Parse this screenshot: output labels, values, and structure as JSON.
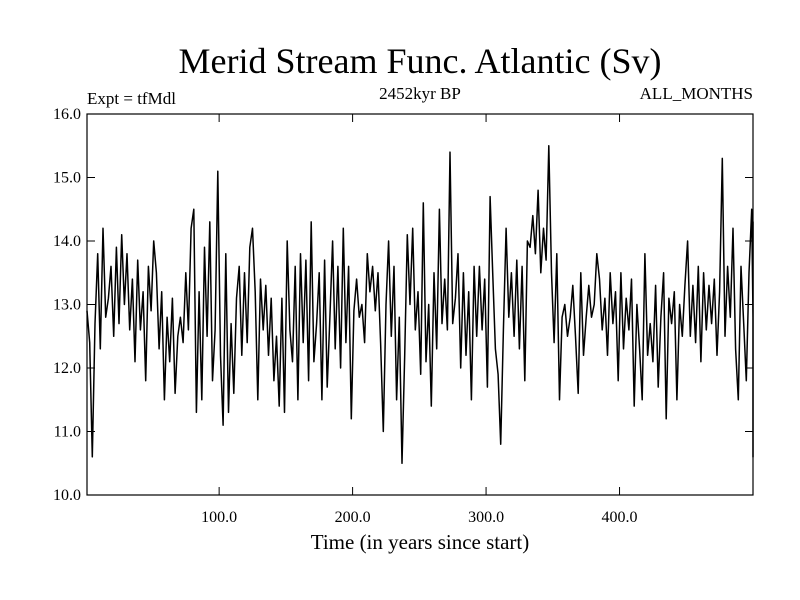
{
  "chart_data": {
    "type": "line",
    "title": "Merid Stream Func. Atlantic (Sv)",
    "subtitle_left": "Expt = tfMdl",
    "subtitle_center": "2452kyr BP",
    "subtitle_right": "ALL_MONTHS",
    "xlabel": "Time (in years since start)",
    "ylabel": "",
    "xlim": [
      1,
      500
    ],
    "ylim": [
      10.0,
      16.0
    ],
    "xticks": [
      100,
      200,
      300,
      400
    ],
    "xtick_labels": [
      "100.0",
      "200.0",
      "300.0",
      "400.0"
    ],
    "yticks": [
      10,
      11,
      12,
      13,
      14,
      15,
      16
    ],
    "ytick_labels": [
      "10.0",
      "11.0",
      "12.0",
      "13.0",
      "14.0",
      "15.0",
      "16.0"
    ],
    "grid": false,
    "series": [
      {
        "name": "AMOC",
        "x_start": 1,
        "x_step": 2,
        "values": [
          12.9,
          12.4,
          10.6,
          12.7,
          13.8,
          12.3,
          14.2,
          12.8,
          13.1,
          13.6,
          12.5,
          13.9,
          12.7,
          14.1,
          13.0,
          13.8,
          12.6,
          13.4,
          12.1,
          13.7,
          12.6,
          13.2,
          11.8,
          13.6,
          12.9,
          14.0,
          13.5,
          12.3,
          13.2,
          11.5,
          12.8,
          12.1,
          13.1,
          11.6,
          12.5,
          12.8,
          12.4,
          13.5,
          12.6,
          14.2,
          14.5,
          11.3,
          13.2,
          11.5,
          13.9,
          12.5,
          14.3,
          11.8,
          12.6,
          15.1,
          12.2,
          11.1,
          13.8,
          11.3,
          12.7,
          11.6,
          13.1,
          13.6,
          12.2,
          13.5,
          12.4,
          13.9,
          14.2,
          13.2,
          11.5,
          13.4,
          12.6,
          13.3,
          12.2,
          13.1,
          11.8,
          12.5,
          11.4,
          13.1,
          11.3,
          14.0,
          12.6,
          12.1,
          13.6,
          11.5,
          13.8,
          12.4,
          13.7,
          11.8,
          14.3,
          12.1,
          12.7,
          13.5,
          11.5,
          13.7,
          11.7,
          12.8,
          14.0,
          12.3,
          13.6,
          12.0,
          14.2,
          12.4,
          13.6,
          11.2,
          12.9,
          13.4,
          12.8,
          13.0,
          12.4,
          13.8,
          13.2,
          13.6,
          12.9,
          13.5,
          12.4,
          11.0,
          13.0,
          14.0,
          12.5,
          13.6,
          11.5,
          12.8,
          10.5,
          12.2,
          14.1,
          13.0,
          14.2,
          12.6,
          13.2,
          11.9,
          14.6,
          12.1,
          13.0,
          11.4,
          13.5,
          12.3,
          14.5,
          12.7,
          13.4,
          12.6,
          15.4,
          12.7,
          13.1,
          13.8,
          12.0,
          13.5,
          12.2,
          13.2,
          11.5,
          13.6,
          12.5,
          13.6,
          12.6,
          13.4,
          11.7,
          14.7,
          13.5,
          12.3,
          11.9,
          10.8,
          12.6,
          14.2,
          12.8,
          13.5,
          12.5,
          13.7,
          12.3,
          13.6,
          11.8,
          14.0,
          13.9,
          14.4,
          13.8,
          14.8,
          13.5,
          14.2,
          13.7,
          15.5,
          13.5,
          12.4,
          13.8,
          11.5,
          12.8,
          13.0,
          12.5,
          12.8,
          13.3,
          12.5,
          11.6,
          13.5,
          12.2,
          12.8,
          13.3,
          12.8,
          13.0,
          13.8,
          13.4,
          12.6,
          13.1,
          12.2,
          13.5,
          12.7,
          13.2,
          11.8,
          13.5,
          12.3,
          13.1,
          12.6,
          13.4,
          11.4,
          13.0,
          12.3,
          11.5,
          13.8,
          12.2,
          12.7,
          12.1,
          13.3,
          11.7,
          12.8,
          13.5,
          11.2,
          13.1,
          12.7,
          13.2,
          11.5,
          13.0,
          12.5,
          13.3,
          14.0,
          12.5,
          13.3,
          12.4,
          13.6,
          12.1,
          13.5,
          12.6,
          13.3,
          12.7,
          13.4,
          12.2,
          13.2,
          15.3,
          12.5,
          13.6,
          12.8,
          14.2,
          12.3,
          11.5,
          13.6,
          12.7,
          11.8,
          13.5,
          14.5,
          12.8,
          14.0,
          12.6,
          13.2,
          11.3,
          13.5,
          10.6,
          14.1,
          13.5,
          14.3,
          14.0
        ]
      }
    ]
  }
}
